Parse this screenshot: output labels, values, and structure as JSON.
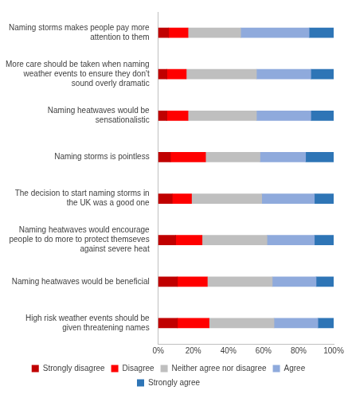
{
  "chart_data": {
    "type": "bar",
    "orientation": "horizontal",
    "stacked": true,
    "grid": false,
    "legend": "bottom",
    "categories": [
      "Naming storms makes people pay more attention to them",
      "More care should be taken when naming weather events to ensure they don't sound overly dramatic",
      "Naming heatwaves would be sensationalistic",
      "Naming storms is pointless",
      "The decision to start naming storms in the UK was a good one",
      "Naming heatwaves would encourage people to do more to protect themseves against severe heat",
      "Naming heatwaves would be beneficial",
      "High risk weather events should be given threatening names"
    ],
    "series": [
      {
        "name": "Strongly disagree",
        "color": "#c00000",
        "values": [
          6,
          5,
          5,
          7,
          8,
          10,
          11,
          11
        ]
      },
      {
        "name": "Disagree",
        "color": "#ff0000",
        "values": [
          11,
          11,
          12,
          20,
          11,
          15,
          17,
          18
        ]
      },
      {
        "name": "Neither agree nor disagree",
        "color": "#bfbfbf",
        "values": [
          30,
          40,
          39,
          31,
          40,
          37,
          37,
          37
        ]
      },
      {
        "name": "Agree",
        "color": "#8faadc",
        "values": [
          39,
          31,
          31,
          26,
          30,
          27,
          25,
          25
        ]
      },
      {
        "name": "Strongly agree",
        "color": "#2e75b6",
        "values": [
          14,
          13,
          13,
          16,
          11,
          11,
          10,
          9
        ]
      }
    ],
    "xlim": [
      0,
      100
    ],
    "xticks": [
      {
        "value": 0,
        "label": "0%"
      },
      {
        "value": 20,
        "label": "20%"
      },
      {
        "value": 40,
        "label": "40%"
      },
      {
        "value": 60,
        "label": "60%"
      },
      {
        "value": 80,
        "label": "80%"
      },
      {
        "value": 100,
        "label": "100%"
      }
    ]
  }
}
